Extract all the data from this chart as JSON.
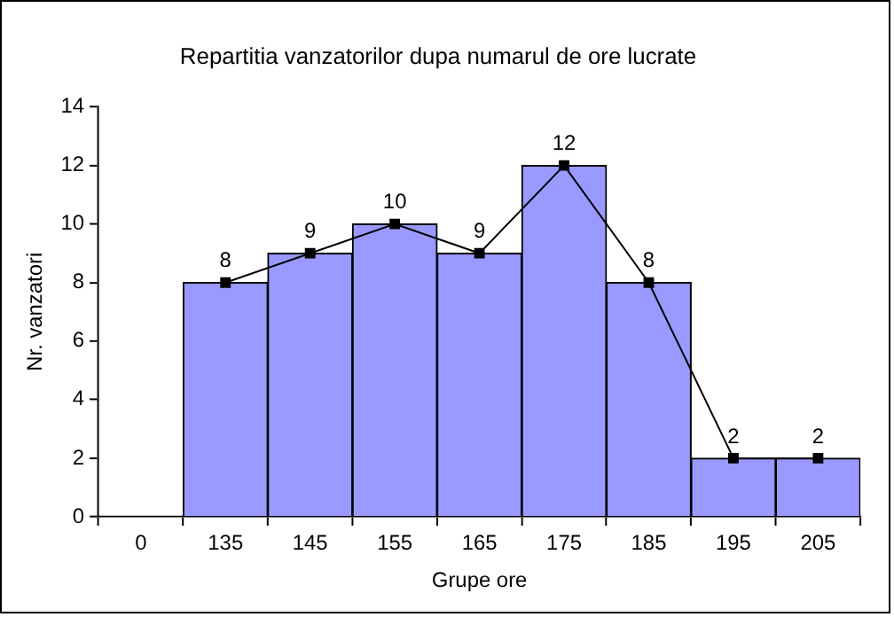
{
  "chart_data": {
    "type": "bar",
    "title": "Repartitia vanzatorilor dupa numarul de ore lucrate",
    "xlabel": "Grupe ore",
    "ylabel": "Nr. vanzatori",
    "categories": [
      "0",
      "135",
      "145",
      "155",
      "165",
      "175",
      "185",
      "195",
      "205"
    ],
    "series": [
      {
        "color": "#9999ff",
        "values": [
          null,
          8,
          9,
          10,
          9,
          12,
          8,
          2,
          2
        ]
      },
      {
        "type": "line",
        "color": "#000000",
        "marker": "square",
        "values": [
          null,
          8,
          9,
          10,
          9,
          12,
          8,
          2,
          2
        ],
        "value_labels": [
          null,
          "8",
          "9",
          "10",
          "9",
          "12",
          "8",
          "2",
          "2"
        ]
      }
    ],
    "ylim": [
      0,
      14
    ],
    "yticks": [
      0,
      2,
      4,
      6,
      8,
      10,
      12,
      14
    ],
    "grid": false,
    "legend": false
  }
}
